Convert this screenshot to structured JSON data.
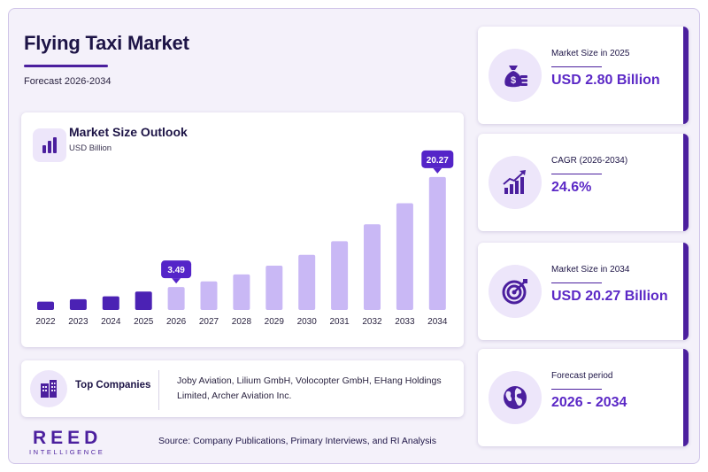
{
  "header": {
    "title": "Flying Taxi Market",
    "subtitle": "Forecast 2026-2034"
  },
  "chart_card": {
    "title": "Market Size Outlook",
    "unit": "USD Billion"
  },
  "chart_data": {
    "type": "bar",
    "title": "Market Size Outlook",
    "ylabel": "USD Billion",
    "categories": [
      "2022",
      "2023",
      "2024",
      "2025",
      "2026",
      "2027",
      "2028",
      "2029",
      "2030",
      "2031",
      "2032",
      "2033",
      "2034"
    ],
    "values": [
      1.26,
      1.63,
      2.07,
      2.8,
      3.49,
      4.35,
      5.42,
      6.75,
      8.41,
      10.48,
      13.06,
      16.27,
      20.27
    ],
    "ylim": [
      0,
      22
    ],
    "historical_color": "#4b22b4",
    "forecast_color": "#c9b8f5",
    "callouts": [
      {
        "category": "2026",
        "label": "3.49"
      },
      {
        "category": "2034",
        "label": "20.27"
      }
    ],
    "grid": false
  },
  "companies": {
    "label": "Top Companies",
    "list": "Joby Aviation, Lilium GmbH, Volocopter GmbH, EHang Holdings Limited, Archer Aviation Inc."
  },
  "footer": {
    "logo_main": "REED",
    "logo_sub": "INTELLIGENCE",
    "source": "Source: Company Publications, Primary Interviews, and RI Analysis"
  },
  "stats": [
    {
      "label": "Market Size in 2025",
      "value": "USD 2.80 Billion",
      "icon": "money-bag-icon"
    },
    {
      "label": "CAGR (2026-2034)",
      "value": "24.6%",
      "icon": "growth-chart-icon"
    },
    {
      "label": "Market Size in 2034",
      "value": "USD 20.27 Billion",
      "icon": "target-icon"
    },
    {
      "label": "Forecast period",
      "value": "2026 - 2034",
      "icon": "globe-icon"
    }
  ],
  "colors": {
    "accent": "#4b1f9e",
    "value_text": "#5b28c6",
    "callout": "#5424c8"
  }
}
